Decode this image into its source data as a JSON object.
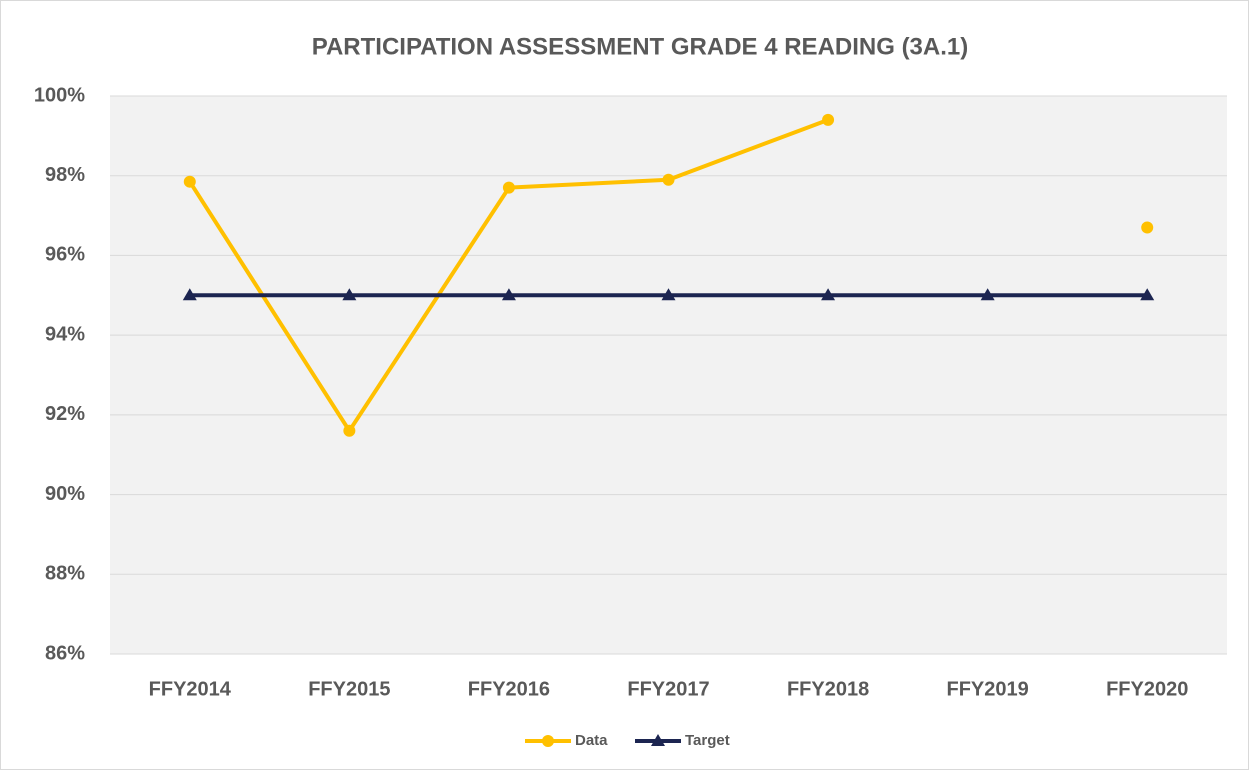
{
  "chart_data": {
    "type": "line",
    "title": "PARTICIPATION ASSESSMENT GRADE 4 READING (3A.1)",
    "categories": [
      "FFY2014",
      "FFY2015",
      "FFY2016",
      "FFY2017",
      "FFY2018",
      "FFY2019",
      "FFY2020"
    ],
    "series": [
      {
        "name": "Data",
        "color": "#ffc000",
        "marker": "circle",
        "values": [
          97.85,
          91.6,
          97.7,
          97.9,
          99.4,
          null,
          96.7
        ]
      },
      {
        "name": "Target",
        "color": "#1c2551",
        "marker": "triangle",
        "values": [
          95,
          95,
          95,
          95,
          95,
          95,
          95
        ]
      }
    ],
    "ylim": [
      86,
      100
    ],
    "yticks": [
      {
        "value": 86,
        "label": "86%"
      },
      {
        "value": 88,
        "label": "88%"
      },
      {
        "value": 90,
        "label": "90%"
      },
      {
        "value": 92,
        "label": "92%"
      },
      {
        "value": 94,
        "label": "94%"
      },
      {
        "value": 96,
        "label": "96%"
      },
      {
        "value": 98,
        "label": "98%"
      },
      {
        "value": 100,
        "label": "100%"
      }
    ],
    "grid": true,
    "legend": "bottom"
  }
}
